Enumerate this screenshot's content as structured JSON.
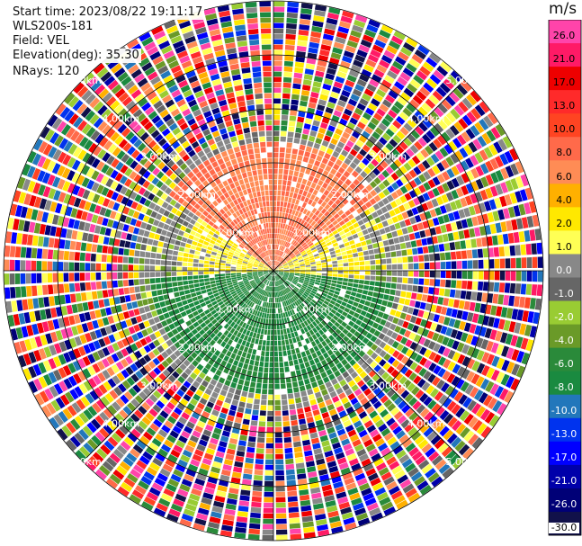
{
  "info": {
    "start_time": "Start time: 2023/08/22 19:11:17",
    "instrument": "WLS200s-181",
    "field": "Field: VEL",
    "elevation": "Elevation(deg): 35.30",
    "nrays": "NRays: 120"
  },
  "chart_data": {
    "type": "heatmap",
    "projection": "polar-ppi",
    "field": "VEL",
    "unit": "m/s",
    "n_rays": 120,
    "range_rings_km": [
      1.0,
      2.0,
      3.0,
      4.0,
      5.0
    ],
    "ring_labels": [
      "1.00km",
      "2.00km",
      "3.00km",
      "4.00km",
      "5.00km"
    ],
    "colorbar": {
      "unit_label": "m/s",
      "ticks": [
        "26.0",
        "21.0",
        "17.0",
        "13.0",
        "10.0",
        "8.0",
        "6.0",
        "4.0",
        "2.0",
        "1.0",
        "0.0",
        "-1.0",
        "-2.0",
        "-4.0",
        "-6.0",
        "-8.0",
        "-10.0",
        "-13.0",
        "-17.0",
        "-21.0",
        "-26.0",
        "-30.0"
      ],
      "colors": [
        "#ff44aa",
        "#ff1a66",
        "#ee0000",
        "#ff2a2a",
        "#ff4422",
        "#ff6a4a",
        "#ff8c55",
        "#ffb000",
        "#ffe800",
        "#ffff55",
        "#888888",
        "#666666",
        "#99cc33",
        "#6a9a28",
        "#2a8a3a",
        "#1a8a40",
        "#2277bb",
        "#0033ee",
        "#0000ff",
        "#0000aa",
        "#000077",
        "#11114a"
      ]
    },
    "sectors": [
      {
        "from_deg": -55,
        "to_deg": 55,
        "max_range_km": 2.3,
        "value_ms": 8
      },
      {
        "from_deg": 30,
        "to_deg": 95,
        "max_range_km": 1.7,
        "value_ms": 2
      },
      {
        "from_deg": 95,
        "to_deg": 265,
        "max_range_km": 2.2,
        "value_ms": -6
      },
      {
        "from_deg": 265,
        "to_deg": 305,
        "max_range_km": 1.6,
        "value_ms": 2
      }
    ]
  }
}
